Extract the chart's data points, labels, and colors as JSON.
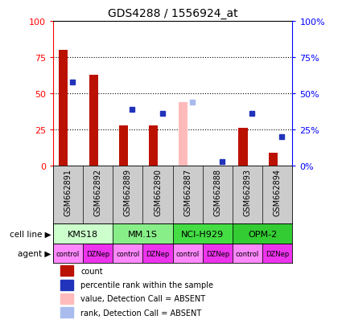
{
  "title": "GDS4288 / 1556924_at",
  "samples": [
    "GSM662891",
    "GSM662892",
    "GSM662889",
    "GSM662890",
    "GSM662887",
    "GSM662888",
    "GSM662893",
    "GSM662894"
  ],
  "count_values": [
    80,
    63,
    28,
    28,
    null,
    null,
    26,
    9
  ],
  "count_absent_values": [
    null,
    null,
    null,
    null,
    44,
    null,
    null,
    null
  ],
  "rank_values": [
    58,
    null,
    39,
    36,
    null,
    3,
    36,
    20
  ],
  "rank_absent_values": [
    null,
    null,
    null,
    null,
    44,
    null,
    null,
    null
  ],
  "cell_lines": [
    {
      "label": "KMS18",
      "start": 0,
      "end": 2,
      "color": "#ccffcc"
    },
    {
      "label": "MM.1S",
      "start": 2,
      "end": 4,
      "color": "#88ee88"
    },
    {
      "label": "NCI-H929",
      "start": 4,
      "end": 6,
      "color": "#44dd44"
    },
    {
      "label": "OPM-2",
      "start": 6,
      "end": 8,
      "color": "#33cc33"
    }
  ],
  "agents": [
    "control",
    "DZNep",
    "control",
    "DZNep",
    "control",
    "DZNep",
    "control",
    "DZNep"
  ],
  "agent_colors": [
    "#ff88ff",
    "#ee33ee",
    "#ff88ff",
    "#ee33ee",
    "#ff88ff",
    "#ee33ee",
    "#ff88ff",
    "#ee33ee"
  ],
  "bar_width": 0.3,
  "ylim": [
    0,
    100
  ],
  "count_color": "#bb1100",
  "count_absent_color": "#ffbbbb",
  "rank_color": "#2233bb",
  "rank_absent_color": "#aabbee",
  "sample_bg_color": "#cccccc",
  "plot_bg_color": "#ffffff",
  "yticks": [
    0,
    25,
    50,
    75,
    100
  ],
  "ytick_labels_left": [
    "0",
    "25",
    "50",
    "75",
    "100"
  ],
  "ytick_labels_right": [
    "0%",
    "25%",
    "50%",
    "75%",
    "100%"
  ],
  "legend_items": [
    {
      "color": "#bb1100",
      "label": "count"
    },
    {
      "color": "#2233bb",
      "label": "percentile rank within the sample"
    },
    {
      "color": "#ffbbbb",
      "label": "value, Detection Call = ABSENT"
    },
    {
      "color": "#aabbee",
      "label": "rank, Detection Call = ABSENT"
    }
  ]
}
